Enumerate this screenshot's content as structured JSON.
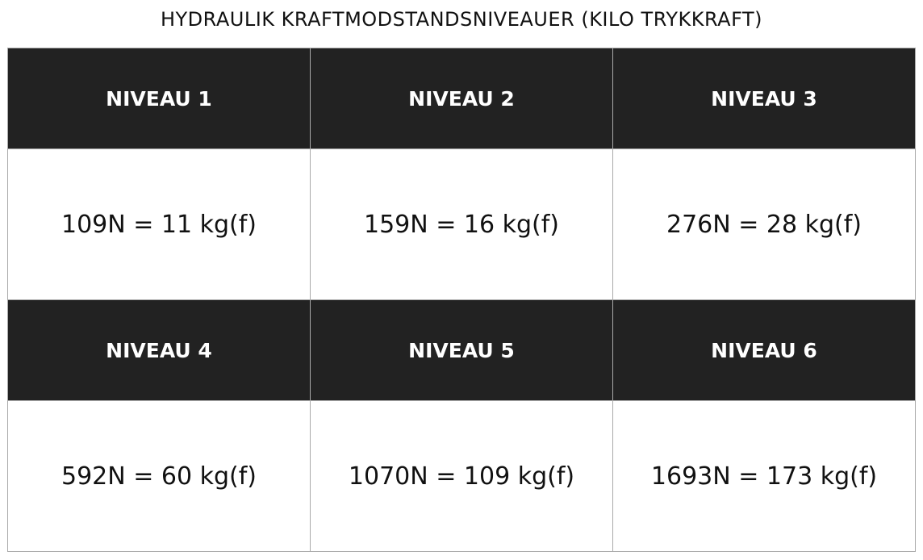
{
  "title": "HYDRAULIK KRAFTMODSTANDSNIVEAUER (KILO TRYKKRAFT)",
  "colors": {
    "header_bg": "#222222",
    "header_text": "#ffffff",
    "border": "#aaaaaa"
  },
  "rows": [
    {
      "headers": [
        "NIVEAU 1",
        "NIVEAU 2",
        "NIVEAU 3"
      ],
      "values": [
        "109N = 11 kg(f)",
        "159N = 16 kg(f)",
        "276N = 28 kg(f)"
      ]
    },
    {
      "headers": [
        "NIVEAU 4",
        "NIVEAU 5",
        "NIVEAU 6"
      ],
      "values": [
        "592N = 60 kg(f)",
        "1070N = 109 kg(f)",
        "1693N = 173 kg(f)"
      ]
    }
  ]
}
